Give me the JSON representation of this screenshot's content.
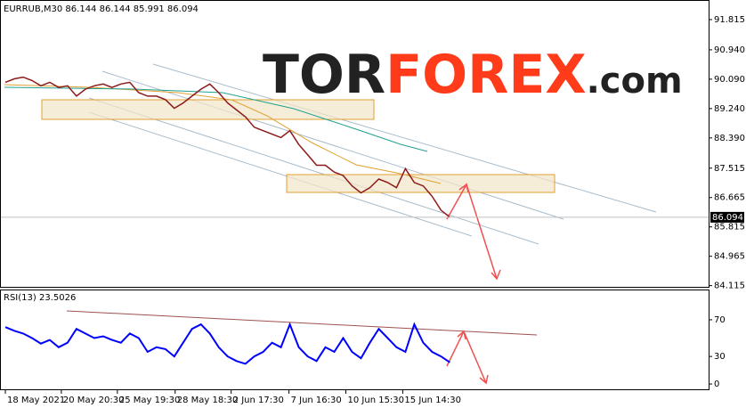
{
  "chart_data": [
    {
      "type": "line",
      "title": "EURRUB,M30  86.144 86.144 85.991 86.094",
      "watermark": {
        "brand_a": "TOR",
        "brand_b": "FOREX",
        "suffix": ".com"
      },
      "color": "#8b1a1a",
      "values": [
        90.0,
        90.1,
        90.15,
        90.05,
        89.9,
        90.0,
        89.85,
        89.9,
        89.6,
        89.8,
        89.9,
        89.95,
        89.85,
        89.95,
        90.0,
        89.7,
        89.6,
        89.6,
        89.5,
        89.25,
        89.4,
        89.6,
        89.8,
        89.95,
        89.7,
        89.4,
        89.2,
        89.0,
        88.7,
        88.6,
        88.5,
        88.4,
        88.6,
        88.2,
        87.9,
        87.6,
        87.6,
        87.4,
        87.3,
        87.0,
        86.8,
        86.95,
        87.2,
        87.1,
        86.95,
        87.5,
        87.1,
        87.0,
        86.7,
        86.3,
        86.094
      ],
      "current_price": {
        "value": 86.094,
        "label": "86.094"
      },
      "ylim": [
        84.08,
        92.33
      ],
      "yticks": [
        84.115,
        84.965,
        85.815,
        86.665,
        87.515,
        {
          "value": 88.39,
          "label": "88.390"
        },
        {
          "value": 89.24,
          "label": "89.240"
        },
        {
          "value": 90.09,
          "label": "90.090"
        },
        {
          "value": 90.94,
          "label": "90.940"
        },
        91.815
      ],
      "xlim": [
        -0.5,
        79.1
      ],
      "xticks": [
        {
          "value": 0,
          "label": "18 May 2021"
        },
        {
          "value": 6.3,
          "label": "20 May 20:30"
        },
        {
          "value": 12.6,
          "label": "25 May 19:30"
        },
        {
          "value": 19.1,
          "label": "28 May 18:30"
        },
        {
          "value": 25.4,
          "label": "2 Jun 17:30"
        },
        {
          "value": 31.9,
          "label": "7 Jun 16:30"
        },
        {
          "value": 38.3,
          "label": "10 Jun 15:30"
        },
        {
          "value": 44.7,
          "label": "15 Jun 14:30"
        }
      ]
    },
    {
      "type": "line",
      "title": "RSI(13) 23.5026",
      "color": "#0000ff",
      "values": [
        62,
        58,
        55,
        50,
        44,
        48,
        40,
        45,
        60,
        55,
        50,
        52,
        48,
        45,
        55,
        50,
        35,
        40,
        38,
        30,
        45,
        60,
        65,
        55,
        40,
        30,
        25,
        22,
        30,
        35,
        45,
        40,
        65,
        40,
        30,
        25,
        40,
        35,
        50,
        35,
        28,
        45,
        60,
        50,
        40,
        35,
        65,
        45,
        35,
        30,
        23.5
      ],
      "ylim": [
        -5.8,
        102
      ],
      "yticks": [
        0,
        30,
        70
      ],
      "xlim": [
        -0.5,
        79.1
      ]
    }
  ]
}
